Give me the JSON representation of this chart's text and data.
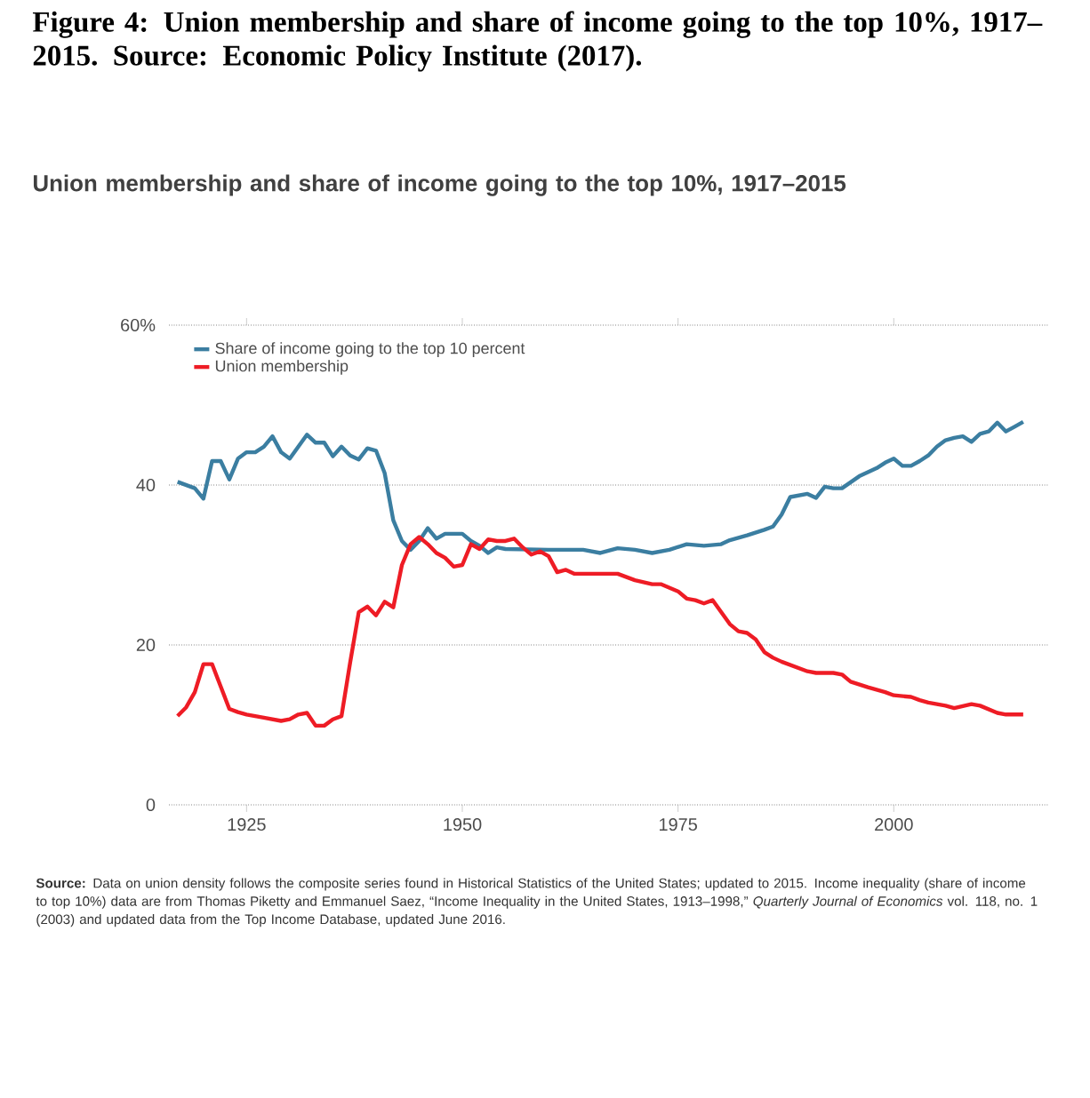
{
  "chart_data": {
    "type": "line",
    "title": "Figure 4: Union membership and share of income going to the top 10%, 1917–2015. Source: Economic Policy Institute (2017).",
    "subtitle": "Union membership and share of income going to the top 10%, 1917–2015",
    "annotations": [
      "**Source:** Data on union density follows the composite series found in Historical Statistics of the United States; updated to 2015. Income inequality (share of income to top 10%) data are from Thomas Piketty and Emmanuel Saez, “Income Inequality in the United States, 1913–1998,” *Quarterly Journal of Economics* vol. 118, no. 1 (2003) and updated data from the Top Income Database, updated June 2016."
    ],
    "xlim": [
      1916,
      2018
    ],
    "ylim": [
      0,
      60
    ],
    "xticks": [
      1925,
      1950,
      1975,
      2000
    ],
    "yticks": [
      0,
      20,
      40,
      {
        "value": 60,
        "label": "60%"
      }
    ],
    "grid": "y",
    "legend": "top left",
    "series": [
      {
        "name": "Share of income going to the top 10 percent",
        "color": "#3b7ea1",
        "x": [
          1917,
          1919,
          1920,
          1921,
          1922,
          1923,
          1924,
          1925,
          1926,
          1927,
          1928,
          1929,
          1930,
          1931,
          1932,
          1933,
          1934,
          1935,
          1936,
          1937,
          1938,
          1939,
          1940,
          1941,
          1942,
          1943,
          1944,
          1945,
          1946,
          1947,
          1948,
          1949,
          1950,
          1951,
          1952,
          1953,
          1954,
          1955,
          1960,
          1964,
          1966,
          1968,
          1970,
          1972,
          1974,
          1976,
          1978,
          1980,
          1981,
          1983,
          1985,
          1986,
          1987,
          1988,
          1990,
          1991,
          1992,
          1993,
          1994,
          1996,
          1998,
          1999,
          2000,
          2001,
          2002,
          2003,
          2004,
          2005,
          2006,
          2007,
          2008,
          2009,
          2010,
          2011,
          2012,
          2013,
          2014,
          2015
        ],
        "values": [
          40.4,
          39.6,
          38.3,
          43,
          43,
          40.7,
          43.3,
          44.1,
          44.1,
          44.8,
          46.1,
          44.1,
          43.3,
          44.8,
          46.3,
          45.3,
          45.3,
          43.6,
          44.8,
          43.7,
          43.2,
          44.6,
          44.3,
          41.5,
          35.6,
          33,
          31.9,
          33,
          34.6,
          33.3,
          33.9,
          33.9,
          33.9,
          33,
          32.4,
          31.5,
          32.2,
          32,
          31.9,
          31.9,
          31.5,
          32.1,
          31.9,
          31.5,
          31.9,
          32.6,
          32.4,
          32.6,
          33.1,
          33.7,
          34.4,
          34.8,
          36.3,
          38.5,
          38.9,
          38.4,
          39.8,
          39.6,
          39.6,
          41.1,
          42.1,
          42.8,
          43.3,
          42.4,
          42.4,
          43,
          43.7,
          44.8,
          45.6,
          45.9,
          46.1,
          45.4,
          46.4,
          46.7,
          47.8,
          46.7,
          47.3,
          47.9
        ]
      },
      {
        "name": "Union membership",
        "color": "#ee1c25",
        "x": [
          1917,
          1918,
          1919,
          1920,
          1921,
          1922,
          1923,
          1924,
          1925,
          1927,
          1929,
          1930,
          1931,
          1932,
          1933,
          1934,
          1935,
          1936,
          1937,
          1938,
          1939,
          1940,
          1941,
          1942,
          1943,
          1944,
          1945,
          1946,
          1947,
          1948,
          1949,
          1950,
          1951,
          1952,
          1953,
          1954,
          1955,
          1956,
          1957,
          1958,
          1959,
          1960,
          1961,
          1962,
          1963,
          1966,
          1968,
          1970,
          1972,
          1973,
          1975,
          1976,
          1977,
          1978,
          1979,
          1980,
          1981,
          1982,
          1983,
          1984,
          1985,
          1986,
          1987,
          1990,
          1991,
          1993,
          1994,
          1995,
          1997,
          1999,
          2000,
          2002,
          2003,
          2004,
          2005,
          2006,
          2007,
          2009,
          2010,
          2012,
          2013,
          2015
        ],
        "values": [
          11.1,
          12.2,
          14.1,
          17.6,
          17.6,
          14.8,
          12,
          11.6,
          11.3,
          10.9,
          10.5,
          10.7,
          11.3,
          11.5,
          9.9,
          9.9,
          10.7,
          11.1,
          17.8,
          24.1,
          24.8,
          23.7,
          25.4,
          24.7,
          30,
          32.6,
          33.5,
          32.6,
          31.5,
          30.9,
          29.8,
          30,
          32.6,
          32,
          33.2,
          33,
          33,
          33.3,
          32.2,
          31.3,
          31.7,
          31.1,
          29.1,
          29.4,
          28.9,
          28.9,
          28.9,
          28.1,
          27.6,
          27.6,
          26.7,
          25.8,
          25.6,
          25.2,
          25.6,
          24.1,
          22.6,
          21.7,
          21.5,
          20.7,
          19.1,
          18.4,
          17.9,
          16.7,
          16.5,
          16.5,
          16.3,
          15.4,
          14.7,
          14.1,
          13.7,
          13.5,
          13.1,
          12.8,
          12.6,
          12.4,
          12.1,
          12.6,
          12.4,
          11.5,
          11.3,
          11.3
        ]
      }
    ]
  }
}
